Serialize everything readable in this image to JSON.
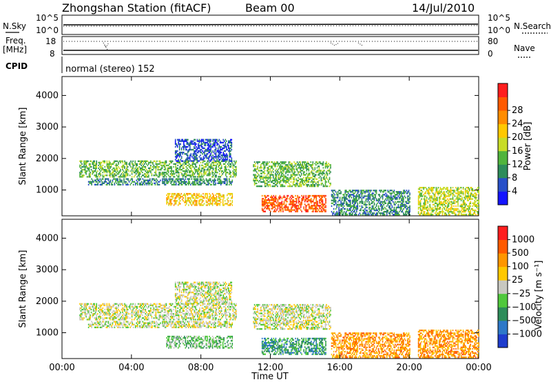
{
  "header": {
    "station": "Zhongshan Station (fitACF)",
    "beam": "Beam 00",
    "date": "14/Jul/2010"
  },
  "top_panels": {
    "nsky_label": "N.Sky",
    "nsky_ticks": [
      "10^5",
      "10^0"
    ],
    "nsearch_label": "N.Search",
    "nsearch_ticks": [
      "10^5",
      "10^0"
    ],
    "freq_label": "Freq.",
    "freq_unit": "[MHz]",
    "freq_ticks": [
      "18",
      "8"
    ],
    "nave_label": "Nave",
    "nave_ticks": [
      "80",
      "0"
    ],
    "cpid_label": "CPID",
    "cpid_text": "normal (stereo) 152"
  },
  "chart_data": [
    {
      "type": "heatmap",
      "name": "power",
      "ylabel": "Slant Range [km]",
      "xlabel": "",
      "x_ticks": [
        "00:00",
        "04:00",
        "08:00",
        "12:00",
        "16:00",
        "20:00",
        "00:00"
      ],
      "xlim_hours": [
        0,
        24
      ],
      "y_ticks": [
        1000,
        2000,
        3000,
        4000
      ],
      "ylim": [
        180,
        4600
      ],
      "colorbar": {
        "label": "Power [dB]",
        "ticks": [
          "4",
          "8",
          "12",
          "16",
          "20",
          "24",
          "28"
        ],
        "colors": [
          "#1414ff",
          "#2850c8",
          "#2d8c5a",
          "#50b43c",
          "#c8dc28",
          "#ffc800",
          "#ff8c00",
          "#ff5a00",
          "#ff1e1e"
        ]
      },
      "echo_regions": [
        {
          "t0": 1.0,
          "t1": 10.0,
          "r0": 1400,
          "r1": 1900,
          "level": 3
        },
        {
          "t0": 1.5,
          "t1": 9.8,
          "r0": 1150,
          "r1": 1350,
          "level": 2
        },
        {
          "t0": 6.5,
          "t1": 9.8,
          "r0": 1900,
          "r1": 2600,
          "level": 1
        },
        {
          "t0": 6.0,
          "t1": 9.8,
          "r0": 500,
          "r1": 900,
          "level": 5
        },
        {
          "t0": 11.0,
          "t1": 15.5,
          "r0": 1100,
          "r1": 1900,
          "level": 3
        },
        {
          "t0": 11.5,
          "t1": 15.2,
          "r0": 300,
          "r1": 800,
          "level": 7
        },
        {
          "t0": 15.5,
          "t1": 20.0,
          "r0": 200,
          "r1": 1000,
          "level": 2
        },
        {
          "t0": 20.5,
          "t1": 24.0,
          "r0": 200,
          "r1": 1100,
          "level": 4
        }
      ]
    },
    {
      "type": "heatmap",
      "name": "velocity",
      "ylabel": "Slant Range [km]",
      "xlabel": "Time UT",
      "x_ticks": [
        "00:00",
        "04:00",
        "08:00",
        "12:00",
        "16:00",
        "20:00",
        "00:00"
      ],
      "xlim_hours": [
        0,
        24
      ],
      "y_ticks": [
        1000,
        2000,
        3000,
        4000
      ],
      "ylim": [
        180,
        4600
      ],
      "colorbar": {
        "label": "Velocity [m s⁻¹]",
        "ticks": [
          "1000",
          "500",
          "100",
          "25",
          "−25",
          "−100",
          "−500",
          "−1000"
        ],
        "colors": [
          "#1e3ccd",
          "#2d78c8",
          "#2d8c5a",
          "#50c83c",
          "#c8c8c0",
          "#ffc800",
          "#ff9600",
          "#ff5a00",
          "#ff1e1e"
        ]
      },
      "echo_regions": [
        {
          "t0": 1.0,
          "t1": 10.0,
          "r0": 1400,
          "r1": 1900,
          "level": 4
        },
        {
          "t0": 1.5,
          "t1": 9.8,
          "r0": 1150,
          "r1": 1350,
          "level": 4
        },
        {
          "t0": 6.5,
          "t1": 9.8,
          "r0": 1900,
          "r1": 2600,
          "level": 4
        },
        {
          "t0": 6.0,
          "t1": 9.8,
          "r0": 500,
          "r1": 900,
          "level": 3
        },
        {
          "t0": 11.0,
          "t1": 15.5,
          "r0": 1100,
          "r1": 1900,
          "level": 4
        },
        {
          "t0": 11.5,
          "t1": 15.2,
          "r0": 300,
          "r1": 800,
          "level": 2
        },
        {
          "t0": 15.5,
          "t1": 20.0,
          "r0": 200,
          "r1": 1000,
          "level": 6
        },
        {
          "t0": 20.5,
          "t1": 24.0,
          "r0": 200,
          "r1": 1100,
          "level": 6
        }
      ]
    }
  ]
}
